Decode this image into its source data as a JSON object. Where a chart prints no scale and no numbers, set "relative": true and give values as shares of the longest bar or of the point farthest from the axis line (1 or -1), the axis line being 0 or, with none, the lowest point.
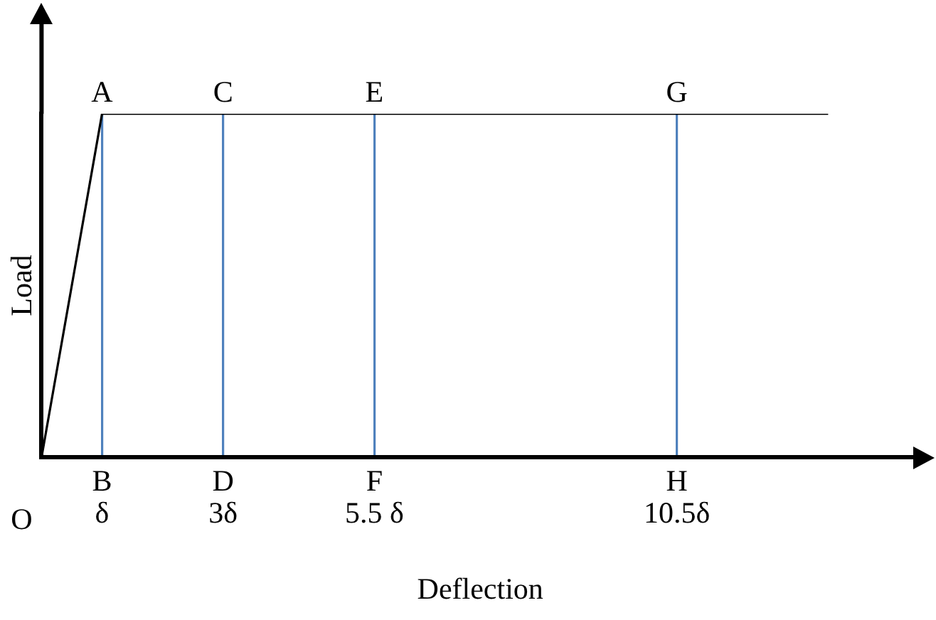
{
  "chart_data": {
    "type": "line",
    "relative": true,
    "xlabel": "Deflection",
    "ylabel": "Load",
    "xlim": [
      0,
      14.5
    ],
    "xticks": [
      {
        "value": 1,
        "label": "δ"
      },
      {
        "value": 3,
        "label": "3δ"
      },
      {
        "value": 5.5,
        "label": "5.5 δ"
      },
      {
        "value": 10.5,
        "label": "10.5δ"
      }
    ],
    "series": [
      {
        "x": [
          0,
          1,
          13
        ],
        "values": [
          0,
          1,
          1
        ],
        "color": "#000000"
      }
    ],
    "annotations": [
      {
        "text": "A",
        "x": 1,
        "y": 1
      },
      {
        "text": "C",
        "x": 3,
        "y": 1
      },
      {
        "text": "E",
        "x": 5.5,
        "y": 1
      },
      {
        "text": "G",
        "x": 10.5,
        "y": 1
      },
      "B",
      "D",
      "F",
      "H",
      {
        "text": "O",
        "x": 0,
        "y": 0
      }
    ],
    "grid": "x",
    "legend": false,
    "marker": "none",
    "line_style": "solid"
  }
}
